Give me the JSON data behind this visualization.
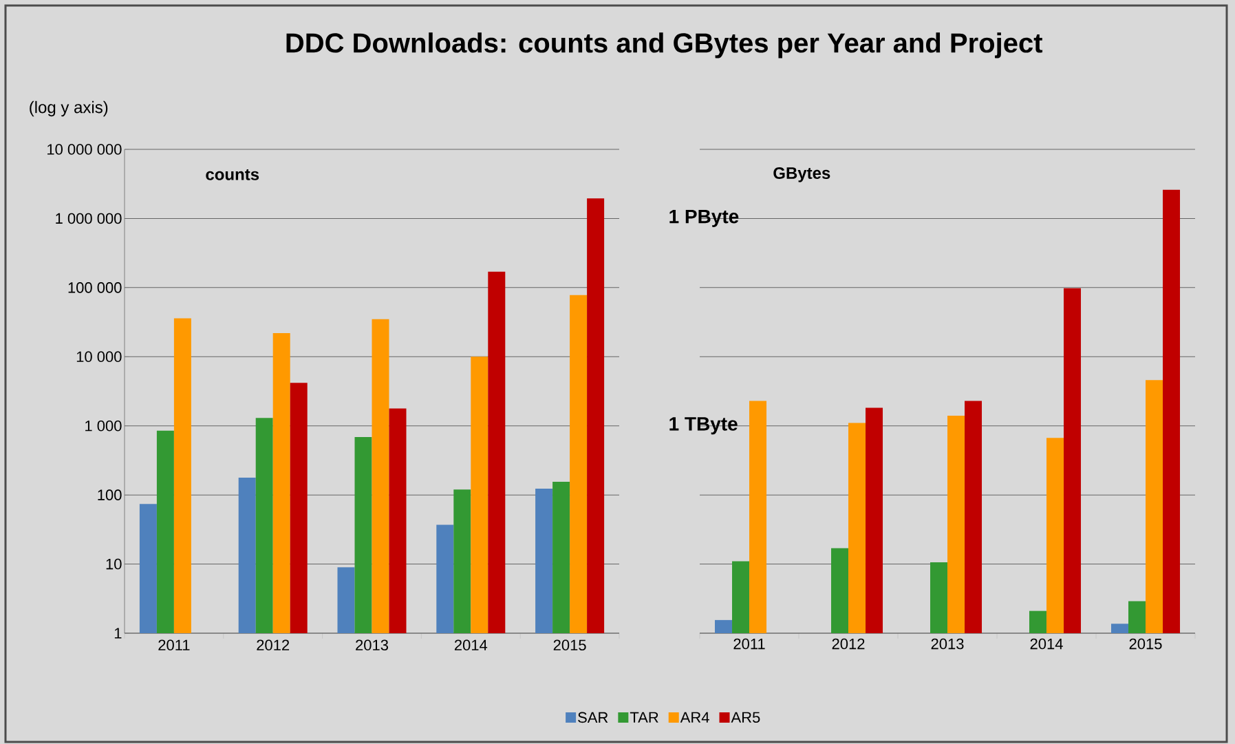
{
  "chart_data": [
    {
      "type": "bar",
      "title": "counts",
      "ylabel": "(log y axis)",
      "annotations": [
        "DDC Downloads: counts and GBytes per Year and Project"
      ],
      "categories": [
        "2011",
        "2012",
        "2013",
        "2014",
        "2015"
      ],
      "log": true,
      "grid": "y",
      "legend": "bottom",
      "ylim": [
        1,
        10000000
      ],
      "yticks": [
        1,
        10,
        100,
        {
          "value": 1000,
          "label": "1 000"
        },
        {
          "value": 10000,
          "label": "10 000"
        },
        {
          "value": 100000,
          "label": "100 000"
        },
        {
          "value": 1000000,
          "label": "1 000 000"
        },
        {
          "value": 10000000,
          "label": "10 000 000"
        }
      ],
      "series": [
        {
          "name": "SAR",
          "color": "#4f81bd",
          "values": [
            74,
            178,
            9,
            37,
            123
          ]
        },
        {
          "name": "TAR",
          "color": "#339933",
          "values": [
            850,
            1300,
            690,
            120,
            155
          ]
        },
        {
          "name": "AR4",
          "color": "#ff9900",
          "values": [
            36000,
            22000,
            35000,
            10000,
            78000
          ]
        },
        {
          "name": "AR5",
          "color": "#c00000",
          "values": [
            null,
            4200,
            1780,
            170000,
            1950000
          ]
        }
      ]
    },
    {
      "type": "bar",
      "title": "GBytes",
      "categories": [
        "2011",
        "2012",
        "2013",
        "2014",
        "2015"
      ],
      "log": true,
      "grid": "y",
      "tick_labels": "x",
      "ylim": [
        1,
        10000000
      ],
      "yticks": [
        1,
        10,
        100,
        1000,
        10000,
        100000,
        1000000,
        10000000
      ],
      "annotations": [
        "1 PByte",
        "1 TByte"
      ],
      "series": [
        {
          "color": "#4f81bd",
          "values": [
            1.55,
            null,
            null,
            null,
            1.37
          ]
        },
        {
          "color": "#339933",
          "values": [
            11,
            17,
            10.6,
            2.1,
            2.9
          ]
        },
        {
          "color": "#ff9900",
          "values": [
            2300,
            1100,
            1400,
            670,
            4600
          ]
        },
        {
          "color": "#c00000",
          "values": [
            null,
            1820,
            2300,
            98000,
            2600000
          ]
        }
      ]
    }
  ]
}
